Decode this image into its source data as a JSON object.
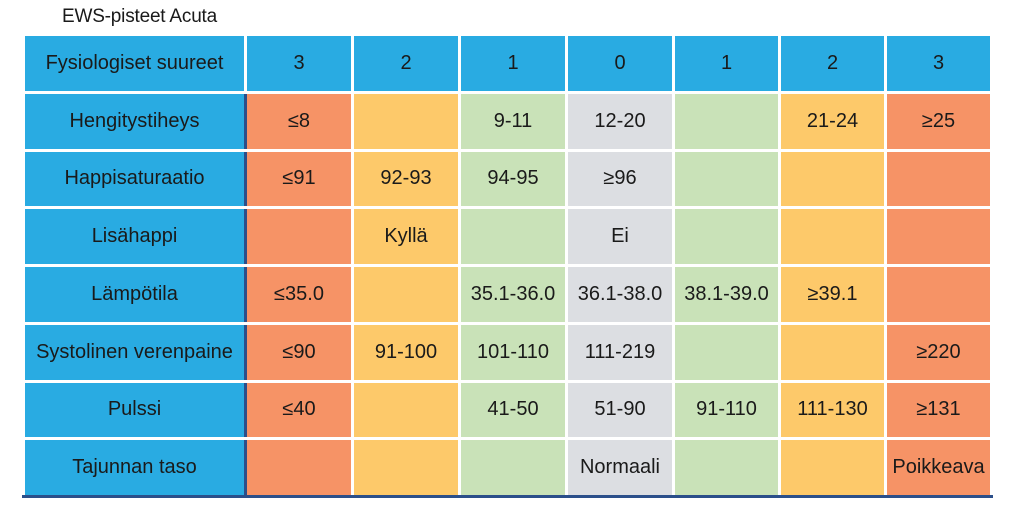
{
  "caption": "EWS-pisteet  Acuta",
  "colors": {
    "header_blue": "#29abe2",
    "score_3": "#f69366",
    "score_2": "#fdc96a",
    "score_1": "#c9e2b8",
    "score_0": "#dcdee2",
    "border_dark": "#2b4f8a"
  },
  "header": {
    "param_label": "Fysiologiset suureet",
    "scores": [
      "3",
      "2",
      "1",
      "0",
      "1",
      "2",
      "3"
    ]
  },
  "rows": [
    {
      "label": "Hengitystiheys",
      "cells": [
        "≤8",
        "",
        "9-11",
        "12-20",
        "",
        "21-24",
        "≥25"
      ]
    },
    {
      "label": "Happisaturaatio",
      "cells": [
        "≤91",
        "92-93",
        "94-95",
        "≥96",
        "",
        "",
        ""
      ]
    },
    {
      "label": "Lisähappi",
      "cells": [
        "",
        "Kyllä",
        "",
        "Ei",
        "",
        "",
        ""
      ]
    },
    {
      "label": "Lämpötila",
      "cells": [
        "≤35.0",
        "",
        "35.1-36.0",
        "36.1-38.0",
        "38.1-39.0",
        "≥39.1",
        ""
      ]
    },
    {
      "label": "Systolinen verenpaine",
      "cells": [
        "≤90",
        "91-100",
        "101-110",
        "111-219",
        "",
        "",
        "≥220"
      ]
    },
    {
      "label": "Pulssi",
      "cells": [
        "≤40",
        "",
        "41-50",
        "51-90",
        "91-110",
        "111-130",
        "≥131"
      ]
    },
    {
      "label": "Tajunnan taso",
      "cells": [
        "",
        "",
        "",
        "Normaali",
        "",
        "",
        "Poikkeava"
      ]
    }
  ]
}
